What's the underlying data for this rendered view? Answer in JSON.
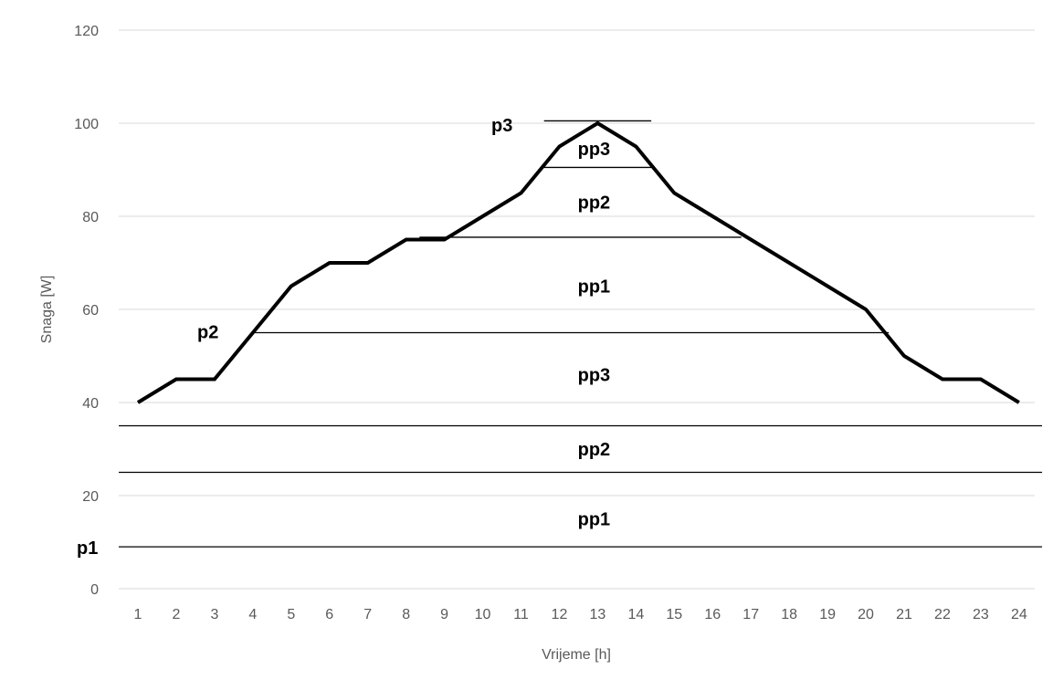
{
  "chart_data": {
    "type": "line",
    "xlabel": "Vrijeme [h]",
    "ylabel": "Snaga [W]",
    "xlim": [
      1,
      24
    ],
    "ylim": [
      0,
      120
    ],
    "yticks": [
      0,
      20,
      40,
      60,
      80,
      100,
      120
    ],
    "categories": [
      "1",
      "2",
      "3",
      "4",
      "5",
      "6",
      "7",
      "8",
      "9",
      "10",
      "11",
      "12",
      "13",
      "14",
      "15",
      "16",
      "17",
      "18",
      "19",
      "20",
      "21",
      "22",
      "23",
      "24"
    ],
    "series": [
      {
        "values": [
          40,
          45,
          45,
          55,
          65,
          70,
          70,
          75,
          75,
          80,
          85,
          95,
          100,
          95,
          85,
          80,
          75,
          70,
          65,
          60,
          50,
          45,
          45,
          40
        ]
      }
    ],
    "grid": true,
    "levels": [
      {
        "label": "p1",
        "y": 9
      },
      {
        "label": "p2",
        "y": 55
      },
      {
        "label": "p3",
        "y": 100
      }
    ],
    "reference_lines": [
      {
        "y": 9,
        "x_from": 0.5,
        "x_to": 24.6
      },
      {
        "y": 25,
        "x_from": 0.5,
        "x_to": 24.6
      },
      {
        "y": 35,
        "x_from": 0.5,
        "x_to": 24.6
      },
      {
        "y": 55,
        "x_from": 4.05,
        "x_to": 20.6
      },
      {
        "y": 75.5,
        "x_from": 8.35,
        "x_to": 16.75
      },
      {
        "y": 90.5,
        "x_from": 11.6,
        "x_to": 14.4
      },
      {
        "y": 100.5,
        "x_from": 11.6,
        "x_to": 14.4
      }
    ],
    "band_labels": [
      {
        "label": "pp1",
        "x": 13,
        "y": 15
      },
      {
        "label": "pp2",
        "x": 13,
        "y": 30
      },
      {
        "label": "pp3",
        "x": 13,
        "y": 46
      },
      {
        "label": "pp1",
        "x": 13,
        "y": 65
      },
      {
        "label": "pp2",
        "x": 13,
        "y": 83
      },
      {
        "label": "pp3",
        "x": 13,
        "y": 94.5
      }
    ]
  }
}
